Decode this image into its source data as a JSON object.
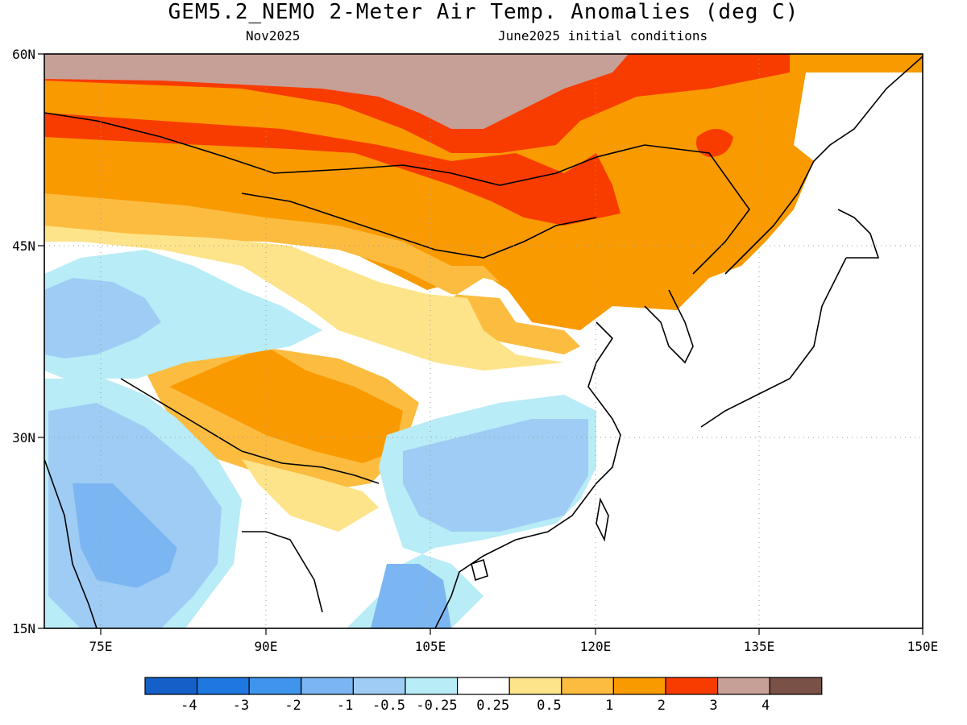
{
  "title": "GEM5.2_NEMO 2-Meter Air Temp. Anomalies (deg C)",
  "subtitle_left": "Nov2025",
  "subtitle_right": "June2025 initial conditions",
  "map": {
    "region": "East Asia",
    "lon_range": [
      70,
      150
    ],
    "lat_range": [
      15,
      60
    ],
    "lon_ticks": [
      "75E",
      "90E",
      "105E",
      "120E",
      "135E",
      "150E"
    ],
    "lat_ticks": [
      "60N",
      "45N",
      "30N",
      "15N"
    ],
    "grid": "dotted"
  },
  "legend": {
    "bins": [
      {
        "label": "-4",
        "color": "#1560c8"
      },
      {
        "label": "-3",
        "color": "#1f78e0"
      },
      {
        "label": "-2",
        "color": "#3f94ec"
      },
      {
        "label": "-1",
        "color": "#7cb6f2"
      },
      {
        "label": "-0.5",
        "color": "#9fccf4"
      },
      {
        "label": "-0.25",
        "color": "#b8ecf6"
      },
      {
        "label": "0.25",
        "color": "#ffffff"
      },
      {
        "label": "0.5",
        "color": "#fde48a"
      },
      {
        "label": "1",
        "color": "#fcbc40"
      },
      {
        "label": "2",
        "color": "#f99a00"
      },
      {
        "label": "3",
        "color": "#f83c00"
      },
      {
        "label": "4",
        "color": "#c6a096"
      },
      {
        "label": "",
        "color": "#7a5146"
      }
    ]
  }
}
